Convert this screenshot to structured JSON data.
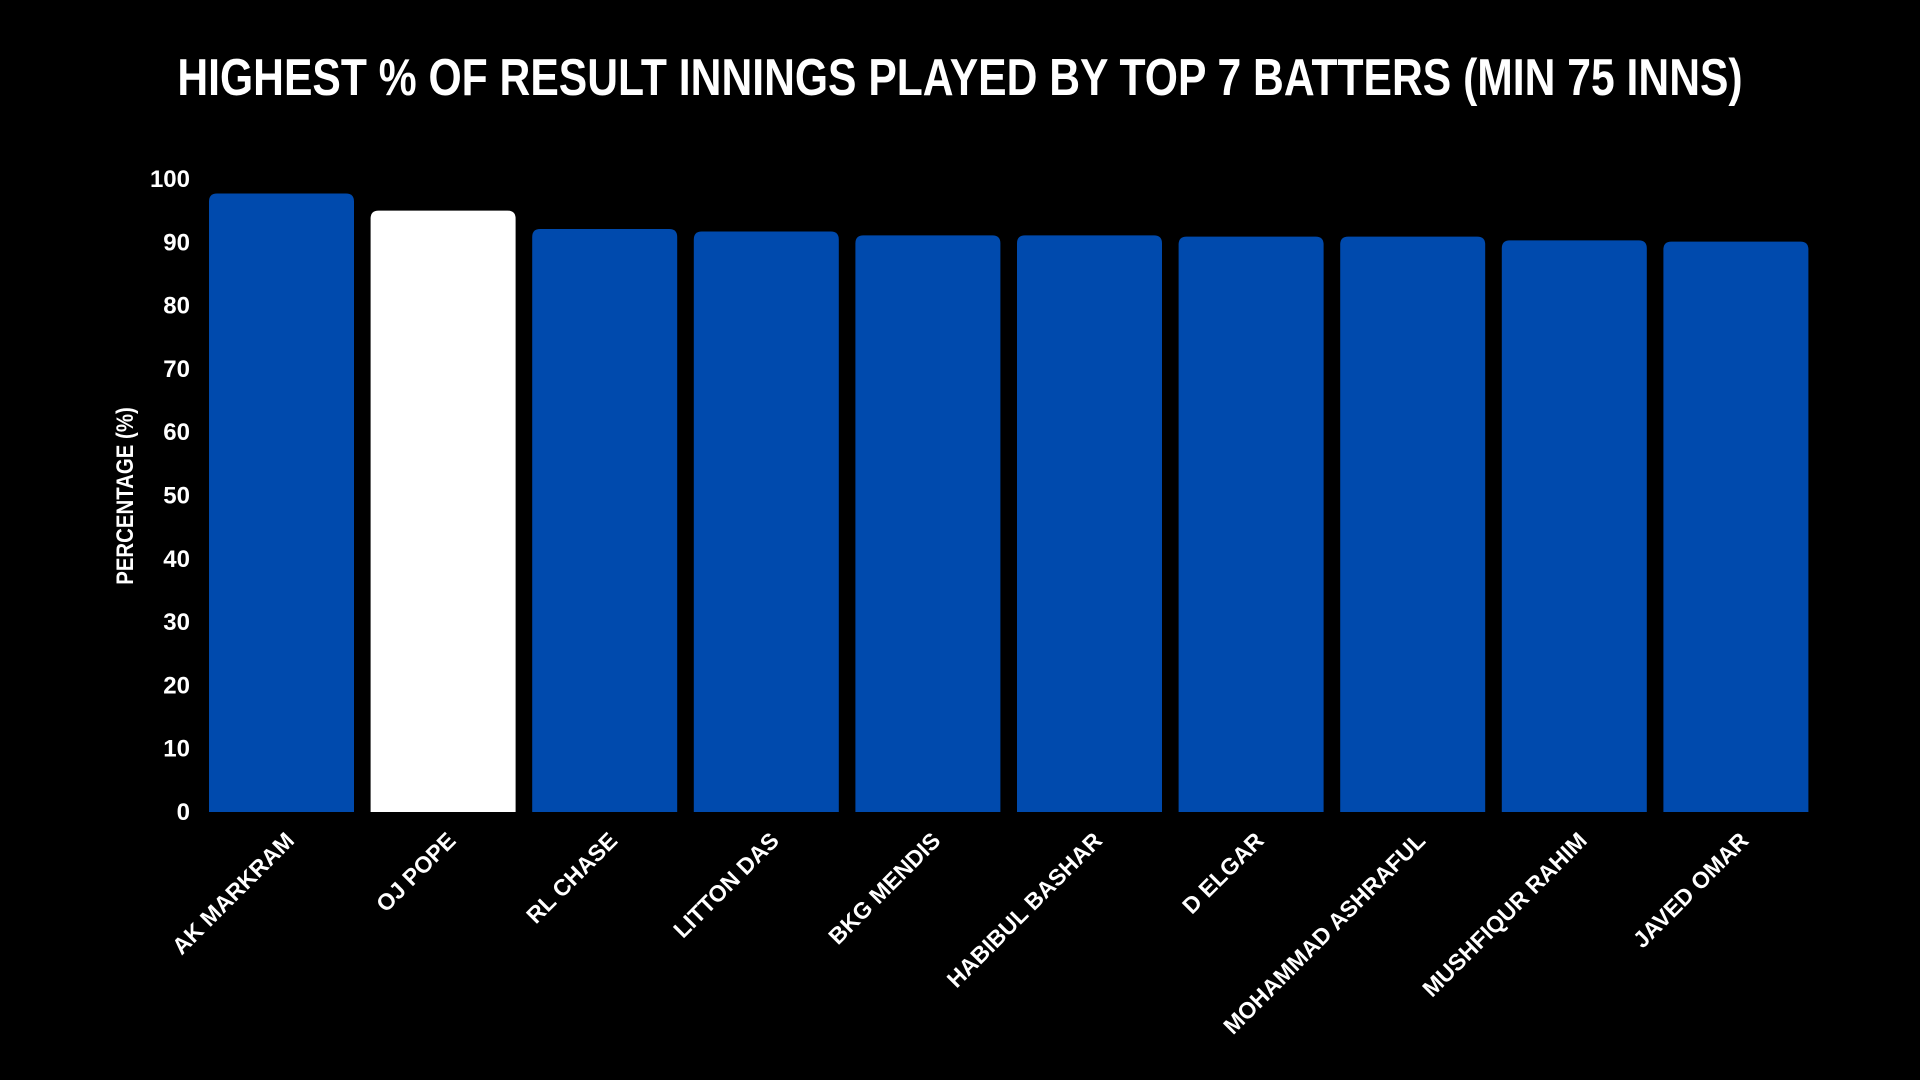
{
  "chart_data": {
    "type": "bar",
    "title": "HIGHEST % OF RESULT INNINGS PLAYED BY TOP 7 BATTERS (MIN 75 INNS)",
    "xlabel": "",
    "ylabel": "PERCENTAGE (%)",
    "ylim": [
      0,
      100
    ],
    "yticks": [
      0,
      10,
      20,
      30,
      40,
      50,
      60,
      70,
      80,
      90,
      100
    ],
    "grid": false,
    "categories": [
      "AK MARKRAM",
      "OJ POPE",
      "RL CHASE",
      "LITTON DAS",
      "BKG MENDIS",
      "HABIBUL BASHAR",
      "D ELGAR",
      "MOHAMMAD ASHRAFUL",
      "MUSHFIQUR RAHIM",
      "JAVED OMAR"
    ],
    "values": [
      97.7,
      95.0,
      92.1,
      91.7,
      91.1,
      91.1,
      90.9,
      90.9,
      90.3,
      90.1
    ],
    "highlight": "OJ POPE",
    "colors": {
      "bar": "#004aad",
      "highlight": "#ffffff",
      "background": "#000000",
      "text": "#ffffff"
    }
  }
}
